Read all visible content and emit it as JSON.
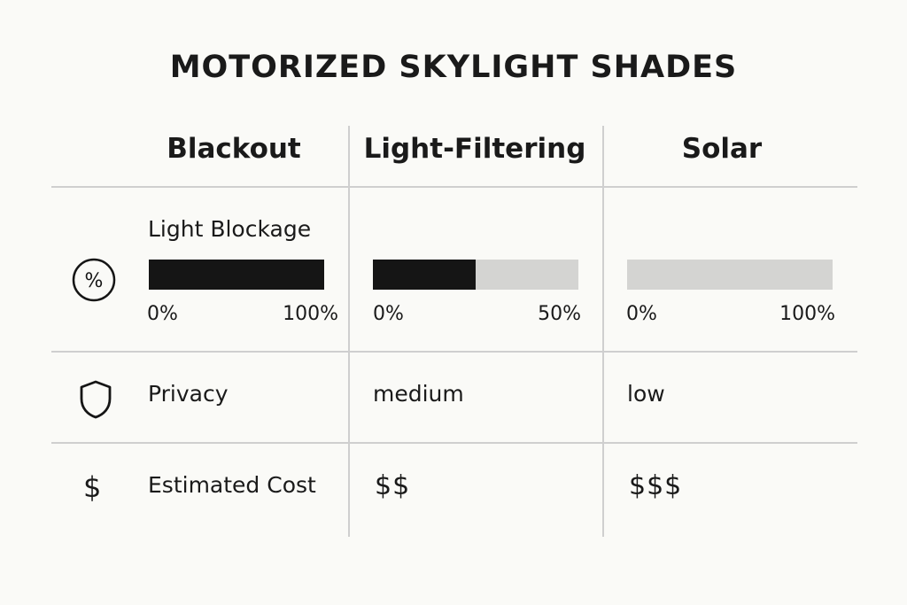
{
  "title": "MOTORIZED SKYLIGHT SHADES",
  "columns": [
    "Blackout",
    "Light-Filtering",
    "Solar"
  ],
  "rows": [
    {
      "label": "Light Blockage",
      "icon": "percent-icon"
    },
    {
      "label": "Privacy",
      "icon": "shield-icon"
    },
    {
      "label": "Estimated Cost",
      "icon": "dollar-icon"
    }
  ],
  "chart_data": {
    "type": "table",
    "title": "MOTORIZED SKYLIGHT SHADES",
    "columns": [
      "Blackout",
      "Light-Filtering",
      "Solar"
    ],
    "light_blockage": [
      {
        "tick_min": "0%",
        "tick_max": "100%",
        "fill": 1.0
      },
      {
        "tick_min": "0%",
        "tick_max": "50%",
        "fill": 0.5
      },
      {
        "tick_min": "0%",
        "tick_max": "100%",
        "fill": 0.0
      }
    ],
    "privacy": [
      "",
      "medium",
      "low"
    ],
    "estimated_cost": [
      "",
      "$$",
      "$$$"
    ]
  },
  "colors": {
    "bar_fill": "#151515",
    "bar_track": "#d4d4d2",
    "grid": "#cfcfcf",
    "background": "#fafaf7"
  }
}
